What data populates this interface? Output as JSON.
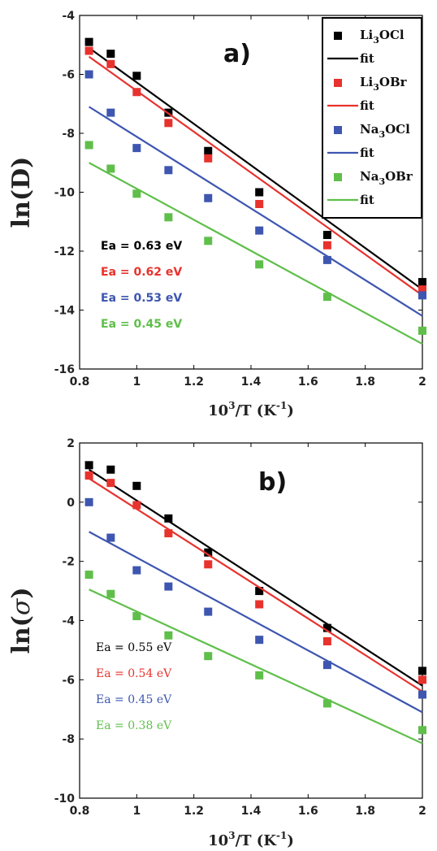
{
  "chart_data": [
    {
      "type": "scatter",
      "panel_label": "a)",
      "ylabel": "ln(D)",
      "xlabel": {
        "base": "10",
        "exp": "3",
        "rest": "/T (K",
        "unit_exp": "-1",
        "close": ")"
      },
      "xlim": [
        0.8,
        2.0
      ],
      "ylim": [
        -16,
        -4
      ],
      "xticks": [
        0.8,
        1.0,
        1.2,
        1.4,
        1.6,
        1.8,
        2.0
      ],
      "xtick_labels": [
        "0.8",
        "1",
        "1.2",
        "1.4",
        "1.6",
        "1.8",
        "2"
      ],
      "yticks": [
        -16,
        -14,
        -12,
        -10,
        -8,
        -6,
        -4
      ],
      "ytick_labels": [
        "-16",
        "-14",
        "-12",
        "-10",
        "-8",
        "-6",
        "-4"
      ],
      "legend_position": "top-right",
      "x": [
        0.833,
        0.909,
        1.0,
        1.111,
        1.25,
        1.429,
        1.667,
        2.0
      ],
      "series": [
        {
          "name": {
            "base": "Li",
            "sub": "3",
            "rest": "OCl"
          },
          "fit_label": "fit",
          "color": "#000000",
          "ea": "Ea = 0.63 eV",
          "values": [
            -4.9,
            -5.3,
            -6.05,
            -7.3,
            -8.6,
            -10.0,
            -11.45,
            -13.05
          ],
          "fit": [
            -5.1,
            -13.3
          ]
        },
        {
          "name": {
            "base": "Li",
            "sub": "3",
            "rest": "OBr"
          },
          "fit_label": "fit",
          "color": "#e8322d",
          "ea": "Ea = 0.62 eV",
          "values": [
            -5.2,
            -5.65,
            -6.6,
            -7.65,
            -8.85,
            -10.4,
            -11.8,
            -13.3
          ],
          "fit": [
            -5.4,
            -13.5
          ]
        },
        {
          "name": {
            "base": "Na",
            "sub": "3",
            "rest": "OCl"
          },
          "fit_label": "fit",
          "color": "#3e56b0",
          "ea": "Ea = 0.53 eV",
          "values": [
            -6.0,
            -7.3,
            -8.5,
            -9.25,
            -10.2,
            -11.3,
            -12.3,
            -13.5
          ],
          "fit": [
            -7.1,
            -14.2
          ]
        },
        {
          "name": {
            "base": "Na",
            "sub": "3",
            "rest": "OBr"
          },
          "fit_label": "fit",
          "color": "#5fbf4a",
          "ea": "Ea = 0.45 eV",
          "values": [
            -8.4,
            -9.2,
            -10.05,
            -10.85,
            -11.65,
            -12.45,
            -13.55,
            -14.7
          ],
          "fit": [
            -9.0,
            -15.15
          ]
        }
      ]
    },
    {
      "type": "scatter",
      "panel_label": "b)",
      "ylabel": {
        "base": "ln(",
        "greek": "σ",
        "close": ")"
      },
      "xlabel": {
        "base": "10",
        "exp": "3",
        "rest": "/T (K",
        "unit_exp": "-1",
        "close": ")"
      },
      "xlim": [
        0.8,
        2.0
      ],
      "ylim": [
        -10,
        2
      ],
      "xticks": [
        0.8,
        1.0,
        1.2,
        1.4,
        1.6,
        1.8,
        2.0
      ],
      "xtick_labels": [
        "0.8",
        "1",
        "1.2",
        "1.4",
        "1.6",
        "1.8",
        "2"
      ],
      "yticks": [
        -10,
        -8,
        -6,
        -4,
        -2,
        0,
        2
      ],
      "ytick_labels": [
        "-10",
        "-8",
        "-6",
        "-4",
        "-2",
        "0",
        "2"
      ],
      "legend_position": "none",
      "x": [
        0.833,
        0.909,
        1.0,
        1.111,
        1.25,
        1.429,
        1.667,
        2.0
      ],
      "series": [
        {
          "color": "#000000",
          "ea": "Ea = 0.55 eV",
          "values": [
            1.25,
            1.1,
            0.55,
            -0.55,
            -1.7,
            -3.0,
            -4.25,
            -5.7
          ],
          "fit": [
            1.1,
            -6.2
          ]
        },
        {
          "color": "#e8322d",
          "ea": "Ea = 0.54 eV",
          "values": [
            0.9,
            0.65,
            -0.1,
            -1.05,
            -2.1,
            -3.45,
            -4.7,
            -6.0
          ],
          "fit": [
            0.8,
            -6.4
          ]
        },
        {
          "color": "#3e56b0",
          "ea": "Ea = 0.45 eV",
          "values": [
            0.0,
            -1.2,
            -2.3,
            -2.85,
            -3.7,
            -4.65,
            -5.5,
            -6.5
          ],
          "fit": [
            -1.0,
            -7.1
          ]
        },
        {
          "color": "#5fbf4a",
          "ea": "Ea = 0.38 eV",
          "values": [
            -2.45,
            -3.1,
            -3.85,
            -4.5,
            -5.2,
            -5.85,
            -6.8,
            -7.7
          ],
          "fit": [
            -2.95,
            -8.15
          ]
        }
      ]
    }
  ]
}
